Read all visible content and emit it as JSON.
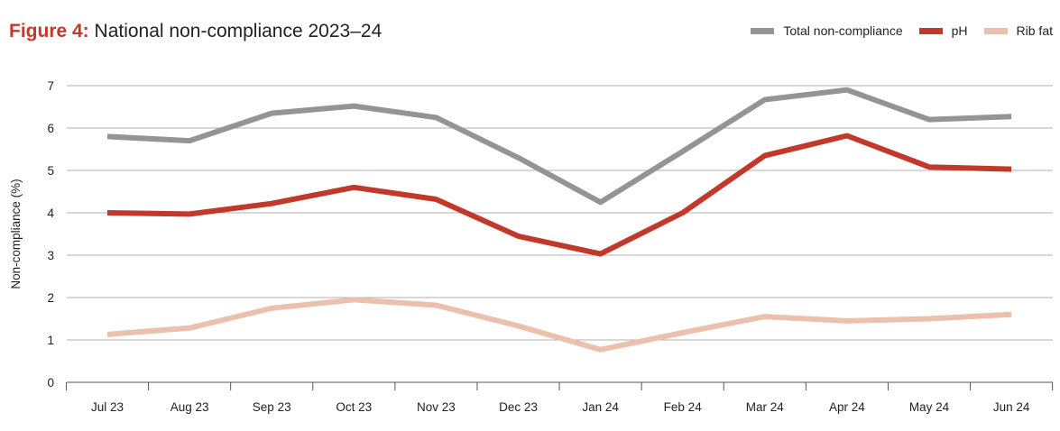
{
  "title": {
    "figure_label": "Figure 4:",
    "text": "National non-compliance 2023–24"
  },
  "chart_data": {
    "type": "line",
    "ylabel": "Non-compliance (%)",
    "xlabel": "",
    "ylim": [
      0,
      7
    ],
    "yticks": [
      0,
      1,
      2,
      3,
      4,
      5,
      6,
      7
    ],
    "grid": true,
    "legend_position": "top-right",
    "categories": [
      "Jul 23",
      "Aug 23",
      "Sep 23",
      "Oct 23",
      "Nov 23",
      "Dec 23",
      "Jan 24",
      "Feb 24",
      "Mar 24",
      "Apr 24",
      "May 24",
      "Jun 24"
    ],
    "series": [
      {
        "name": "Total non-compliance",
        "color": "#949494",
        "values": [
          5.8,
          5.7,
          6.35,
          6.52,
          6.25,
          5.3,
          4.25,
          5.45,
          6.67,
          6.9,
          6.2,
          6.27
        ]
      },
      {
        "name": "pH",
        "color": "#c0392b",
        "values": [
          4.0,
          3.97,
          4.22,
          4.6,
          4.32,
          3.45,
          3.03,
          4.0,
          5.35,
          5.82,
          5.08,
          5.03
        ]
      },
      {
        "name": "Rib fat",
        "color": "#ebc0ad",
        "values": [
          1.13,
          1.28,
          1.75,
          1.95,
          1.82,
          1.33,
          0.77,
          1.17,
          1.55,
          1.45,
          1.5,
          1.6
        ]
      }
    ]
  }
}
